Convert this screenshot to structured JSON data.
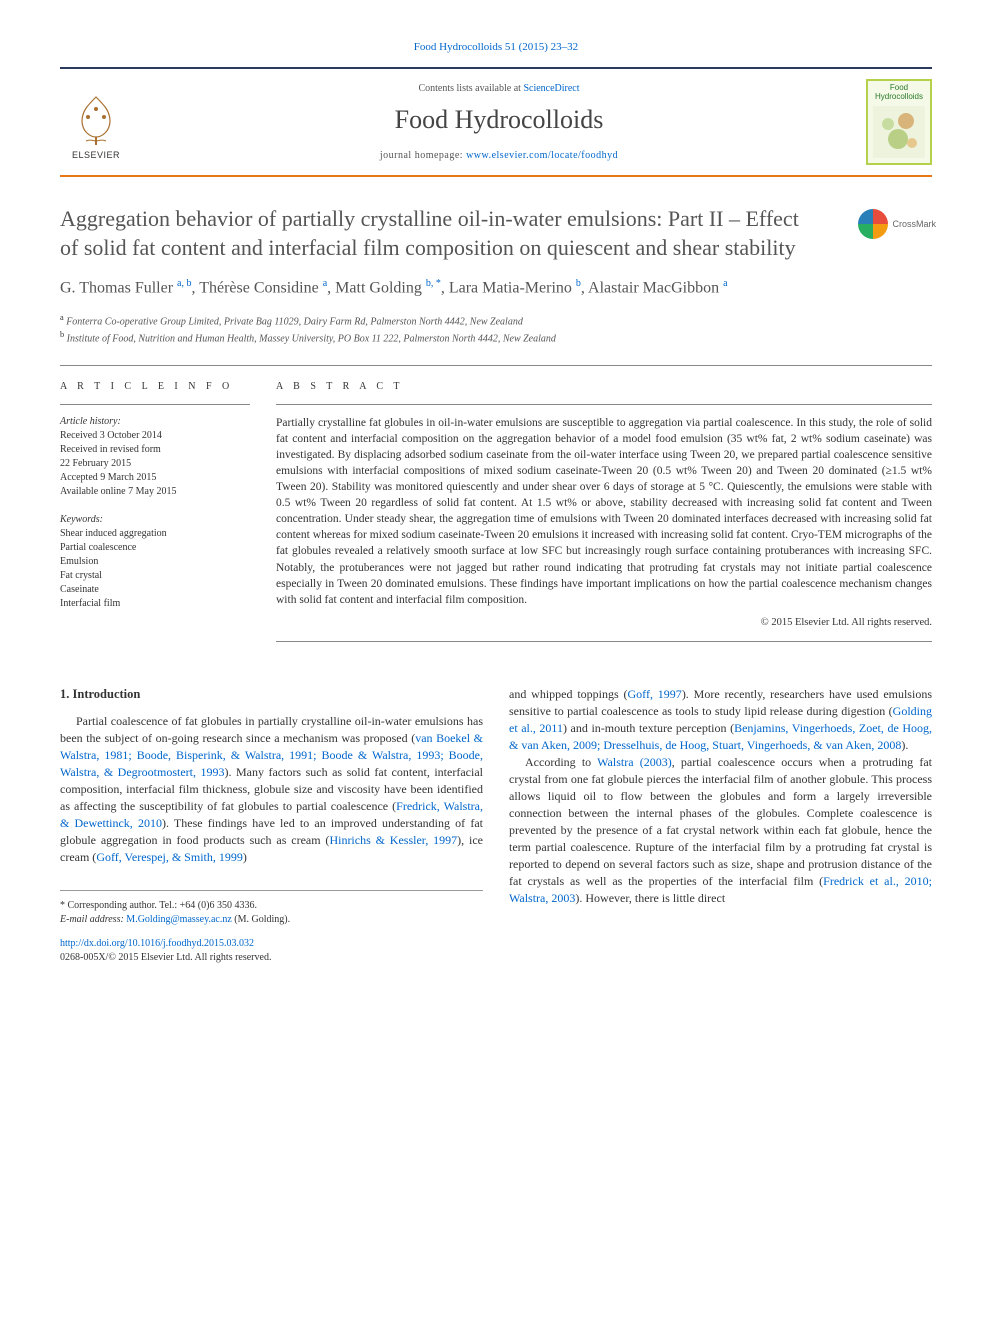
{
  "topLink": {
    "text": "Food Hydrocolloids 51 (2015) 23–32",
    "href": "#"
  },
  "headerBand": {
    "contentsLine_prefix": "Contents lists available at ",
    "contentsLine_link": "ScienceDirect",
    "journalName": "Food Hydrocolloids",
    "homepage_prefix": "journal homepage: ",
    "homepage_link": "www.elsevier.com/locate/foodhyd",
    "elsevierLabel": "ELSEVIER",
    "coverTopLine1": "Food",
    "coverTopLine2": "Hydrocolloids",
    "colors": {
      "borderTop": "#2a3a5a",
      "borderBottom": "#e67817",
      "coverBorder": "#b5d04a",
      "coverBg": "#f5f9e8"
    }
  },
  "crossmark": {
    "label": "CrossMark"
  },
  "title": "Aggregation behavior of partially crystalline oil-in-water emulsions: Part II – Effect of solid fat content and interfacial film composition on quiescent and shear stability",
  "authors_html": "G. Thomas Fuller <sup>a, b</sup>, Thérèse Considine <sup>a</sup>, Matt Golding <sup>b, *</sup>, Lara Matia-Merino <sup>b</sup>, Alastair MacGibbon <sup>a</sup>",
  "affiliations": [
    {
      "sup": "a",
      "text": "Fonterra Co-operative Group Limited, Private Bag 11029, Dairy Farm Rd, Palmerston North 4442, New Zealand"
    },
    {
      "sup": "b",
      "text": "Institute of Food, Nutrition and Human Health, Massey University, PO Box 11 222, Palmerston North 4442, New Zealand"
    }
  ],
  "articleInfo": {
    "head": "A R T I C L E   I N F O",
    "history_label": "Article history:",
    "history_lines": [
      "Received 3 October 2014",
      "Received in revised form",
      "22 February 2015",
      "Accepted 9 March 2015",
      "Available online 7 May 2015"
    ],
    "keywords_label": "Keywords:",
    "keywords": [
      "Shear induced aggregation",
      "Partial coalescence",
      "Emulsion",
      "Fat crystal",
      "Caseinate",
      "Interfacial film"
    ]
  },
  "abstract": {
    "head": "A B S T R A C T",
    "text": "Partially crystalline fat globules in oil-in-water emulsions are susceptible to aggregation via partial coalescence. In this study, the role of solid fat content and interfacial composition on the aggregation behavior of a model food emulsion (35 wt% fat, 2 wt% sodium caseinate) was investigated. By displacing adsorbed sodium caseinate from the oil-water interface using Tween 20, we prepared partial coalescence sensitive emulsions with interfacial compositions of mixed sodium caseinate-Tween 20 (0.5 wt% Tween 20) and Tween 20 dominated (≥1.5 wt% Tween 20). Stability was monitored quiescently and under shear over 6 days of storage at 5 °C. Quiescently, the emulsions were stable with 0.5 wt% Tween 20 regardless of solid fat content. At 1.5 wt% or above, stability decreased with increasing solid fat content and Tween concentration. Under steady shear, the aggregation time of emulsions with Tween 20 dominated interfaces decreased with increasing solid fat content whereas for mixed sodium caseinate-Tween 20 emulsions it increased with increasing solid fat content. Cryo-TEM micrographs of the fat globules revealed a relatively smooth surface at low SFC but increasingly rough surface containing protuberances with increasing SFC. Notably, the protuberances were not jagged but rather round indicating that protruding fat crystals may not initiate partial coalescence especially in Tween 20 dominated emulsions. These findings have important implications on how the partial coalescence mechanism changes with solid fat content and interfacial film composition.",
    "copyright": "© 2015 Elsevier Ltd. All rights reserved."
  },
  "intro": {
    "head": "1.  Introduction",
    "col1_paras": [
      "Partial coalescence of fat globules in partially crystalline oil-in-water emulsions has been the subject of on-going research since a mechanism was proposed (<a href='#'>van Boekel & Walstra, 1981; Boode, Bisperink, & Walstra, 1991; Boode & Walstra, 1993; Boode, Walstra, & Degrootmostert, 1993</a>). Many factors such as solid fat content, interfacial composition, interfacial film thickness, globule size and viscosity have been identified as affecting the susceptibility of fat globules to partial coalescence (<a href='#'>Fredrick, Walstra, & Dewettinck, 2010</a>). These findings have led to an improved understanding of fat globule aggregation in food products such as cream (<a href='#'>Hinrichs & Kessler, 1997</a>), ice cream (<a href='#'>Goff, Verespej, & Smith, 1999</a>)"
    ],
    "col2_paras": [
      "and whipped toppings (<a href='#'>Goff, 1997</a>). More recently, researchers have used emulsions sensitive to partial coalescence as tools to study lipid release during digestion (<a href='#'>Golding et al., 2011</a>) and in-mouth texture perception (<a href='#'>Benjamins, Vingerhoeds, Zoet, de Hoog, & van Aken, 2009; Dresselhuis, de Hoog, Stuart, Vingerhoeds, & van Aken, 2008</a>).",
      "According to <a href='#'>Walstra (2003)</a>, partial coalescence occurs when a protruding fat crystal from one fat globule pierces the interfacial film of another globule. This process allows liquid oil to flow between the globules and form a largely irreversible connection between the internal phases of the globules. Complete coalescence is prevented by the presence of a fat crystal network within each fat globule, hence the term partial coalescence. Rupture of the interfacial film by a protruding fat crystal is reported to depend on several factors such as size, shape and protrusion distance of the fat crystals as well as the properties of the interfacial film (<a href='#'>Fredrick et al., 2010; Walstra, 2003</a>). However, there is little direct"
    ]
  },
  "footnotes": {
    "corr_label": "* Corresponding author. Tel.: +64 (0)6 350 4336.",
    "email_label": "E-mail address:",
    "email_value": "M.Golding@massey.ac.nz",
    "email_paren": "(M. Golding)."
  },
  "doi": {
    "url": "http://dx.doi.org/10.1016/j.foodhyd.2015.03.032",
    "issn_line": "0268-005X/© 2015 Elsevier Ltd. All rights reserved."
  },
  "colors": {
    "link": "#0066cc",
    "text": "#333333",
    "titleGrey": "#555555"
  }
}
